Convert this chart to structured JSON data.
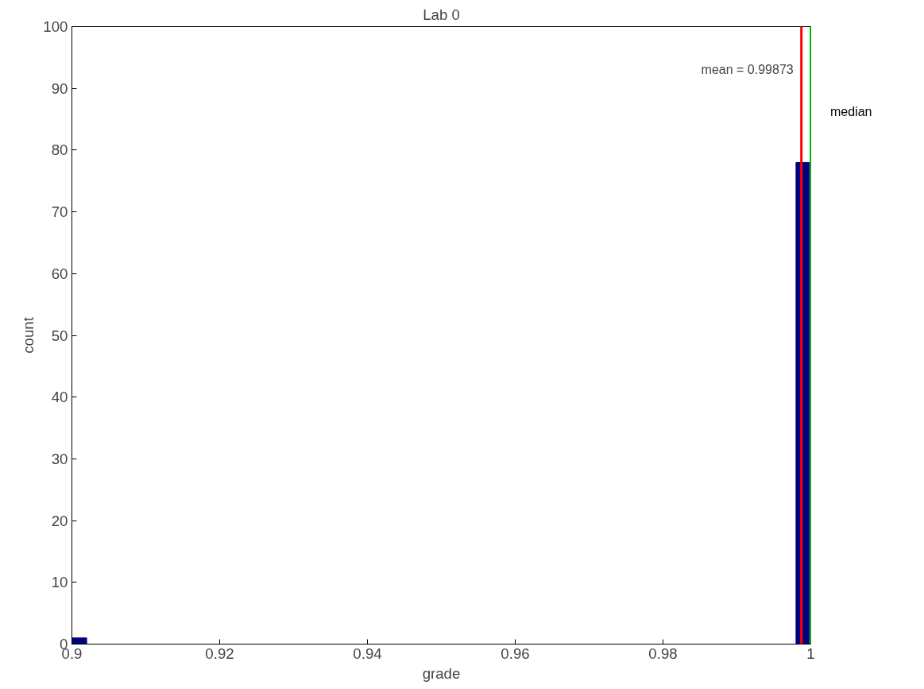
{
  "chart_data": {
    "type": "histogram",
    "title": "Lab 0",
    "xlabel": "grade",
    "ylabel": "count",
    "bins": [
      0.9,
      0.902,
      0.904,
      0.906,
      0.908,
      0.91,
      0.912,
      0.914,
      0.916,
      0.918,
      0.92,
      0.922,
      0.924,
      0.926,
      0.928,
      0.93,
      0.932,
      0.934,
      0.936,
      0.938,
      0.94,
      0.942,
      0.944,
      0.946,
      0.948,
      0.95,
      0.952,
      0.954,
      0.956,
      0.958,
      0.96,
      0.962,
      0.964,
      0.966,
      0.968,
      0.97,
      0.972,
      0.974,
      0.976,
      0.978,
      0.98,
      0.982,
      0.984,
      0.986,
      0.988,
      0.99,
      0.992,
      0.994,
      0.996,
      0.998,
      1.0
    ],
    "values": [
      1,
      0,
      0,
      0,
      0,
      0,
      0,
      0,
      0,
      0,
      0,
      0,
      0,
      0,
      0,
      0,
      0,
      0,
      0,
      0,
      0,
      0,
      0,
      0,
      0,
      0,
      0,
      0,
      0,
      0,
      0,
      0,
      0,
      0,
      0,
      0,
      0,
      0,
      0,
      0,
      0,
      0,
      0,
      0,
      0,
      0,
      0,
      0,
      0,
      78
    ],
    "color": "#00007f",
    "xlim": [
      0.9,
      1.0
    ],
    "ylim": [
      0,
      100
    ],
    "xticks": [
      0.9,
      0.92,
      0.94,
      0.96,
      0.98,
      {
        "value": 1.0,
        "label": "1"
      }
    ],
    "yticks": [
      0,
      10,
      20,
      30,
      40,
      50,
      60,
      70,
      80,
      90,
      100
    ],
    "ref_lines": [
      {
        "axis": "x",
        "value": 0.99873,
        "label": "mean = 0.99873",
        "color": "#ff0000"
      },
      {
        "axis": "x",
        "value": 1.0,
        "label": "median",
        "color": "#00ff00"
      }
    ],
    "grid": false
  }
}
